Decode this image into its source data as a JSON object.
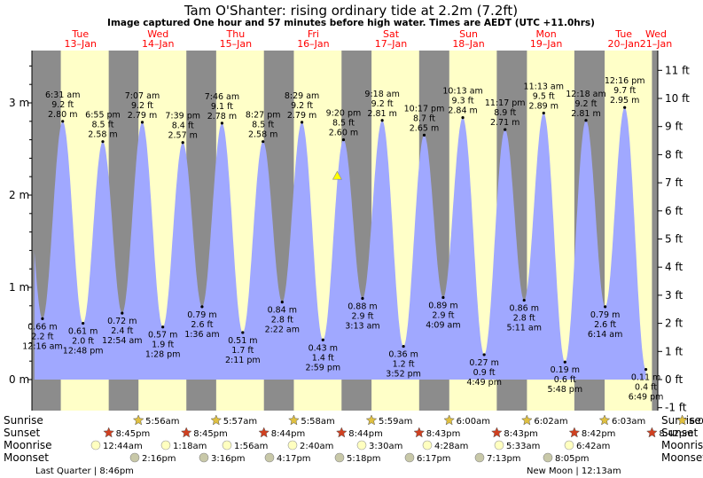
{
  "title": "Tam O'Shanter: rising  ordinary tide at 2.2m (7.2ft)",
  "subtitle": "Image captured One hour and 57 minutes before high water. Times are AEDT (UTC +11.0hrs)",
  "colors": {
    "day": "#ffffc8",
    "night": "#8c8c8c",
    "water": "#a0a8ff",
    "date_text": "#ff0000",
    "marker": "#ffff00"
  },
  "chart_data": {
    "type": "area",
    "series": [],
    "x_unit": "time (AEDT)",
    "y_left_ticks": [
      "0 m",
      "1 m",
      "2 m",
      "3 m"
    ],
    "y_right_ticks": [
      "-1 ft",
      "0 ft",
      "1 ft",
      "2 ft",
      "3 ft",
      "4 ft",
      "5 ft",
      "6 ft",
      "7 ft",
      "8 ft",
      "9 ft",
      "10 ft",
      "11 ft"
    ],
    "ylim_m": [
      -0.2,
      3.6
    ],
    "grid": false,
    "days": [
      {
        "dow": "Tue",
        "date": "13–Jan"
      },
      {
        "dow": "Wed",
        "date": "14–Jan"
      },
      {
        "dow": "Thu",
        "date": "15–Jan"
      },
      {
        "dow": "Fri",
        "date": "16–Jan"
      },
      {
        "dow": "Sat",
        "date": "17–Jan"
      },
      {
        "dow": "Sun",
        "date": "18–Jan"
      },
      {
        "dow": "Mon",
        "date": "19–Jan"
      },
      {
        "dow": "Tue",
        "date": "20–Jan"
      },
      {
        "dow": "Wed",
        "date": "21–Jan"
      }
    ],
    "tides": [
      {
        "type": "low",
        "time": "12:16 am",
        "m": "0.66 m",
        "ft": "2.2 ft",
        "h": 0.66,
        "t": 0.27
      },
      {
        "type": "high",
        "time": "6:31 am",
        "m": "2.80 m",
        "ft": "9.2 ft",
        "h": 2.8,
        "t": 6.52
      },
      {
        "type": "low",
        "time": "12:48 pm",
        "m": "0.61 m",
        "ft": "2.0 ft",
        "h": 0.61,
        "t": 12.8
      },
      {
        "type": "high",
        "time": "6:55 pm",
        "m": "2.58 m",
        "ft": "8.5 ft",
        "h": 2.58,
        "t": 18.92
      },
      {
        "type": "low",
        "time": "12:54 am",
        "m": "0.72 m",
        "ft": "2.4 ft",
        "h": 0.72,
        "t": 24.9
      },
      {
        "type": "high",
        "time": "7:07 am",
        "m": "2.79 m",
        "ft": "9.2 ft",
        "h": 2.79,
        "t": 31.12
      },
      {
        "type": "low",
        "time": "1:28 pm",
        "m": "0.57 m",
        "ft": "1.9 ft",
        "h": 0.57,
        "t": 37.47
      },
      {
        "type": "high",
        "time": "7:39 pm",
        "m": "2.57 m",
        "ft": "8.4 ft",
        "h": 2.57,
        "t": 43.65
      },
      {
        "type": "low",
        "time": "1:36 am",
        "m": "0.79 m",
        "ft": "2.6 ft",
        "h": 0.79,
        "t": 49.6
      },
      {
        "type": "high",
        "time": "7:46 am",
        "m": "2.78 m",
        "ft": "9.1 ft",
        "h": 2.78,
        "t": 55.77
      },
      {
        "type": "low",
        "time": "2:11 pm",
        "m": "0.51 m",
        "ft": "1.7 ft",
        "h": 0.51,
        "t": 62.18
      },
      {
        "type": "high",
        "time": "8:27 pm",
        "m": "2.58 m",
        "ft": "8.5 ft",
        "h": 2.58,
        "t": 68.45
      },
      {
        "type": "low",
        "time": "2:22 am",
        "m": "0.84 m",
        "ft": "2.8 ft",
        "h": 0.84,
        "t": 74.37
      },
      {
        "type": "high",
        "time": "8:29 am",
        "m": "2.79 m",
        "ft": "9.2 ft",
        "h": 2.79,
        "t": 80.48
      },
      {
        "type": "low",
        "time": "2:59 pm",
        "m": "0.43 m",
        "ft": "1.4 ft",
        "h": 0.43,
        "t": 86.98
      },
      {
        "type": "high",
        "time": "9:20 pm",
        "m": "2.60 m",
        "ft": "8.5 ft",
        "h": 2.6,
        "t": 93.33
      },
      {
        "type": "low",
        "time": "3:13 am",
        "m": "0.88 m",
        "ft": "2.9 ft",
        "h": 0.88,
        "t": 99.22
      },
      {
        "type": "high",
        "time": "9:18 am",
        "m": "2.81 m",
        "ft": "9.2 ft",
        "h": 2.81,
        "t": 105.3
      },
      {
        "type": "low",
        "time": "3:52 pm",
        "m": "0.36 m",
        "ft": "1.2 ft",
        "h": 0.36,
        "t": 111.87
      },
      {
        "type": "high",
        "time": "10:17 pm",
        "m": "2.65 m",
        "ft": "8.7 ft",
        "h": 2.65,
        "t": 118.28
      },
      {
        "type": "low",
        "time": "4:09 am",
        "m": "0.89 m",
        "ft": "2.9 ft",
        "h": 0.89,
        "t": 124.15
      },
      {
        "type": "high",
        "time": "10:13 am",
        "m": "2.84 m",
        "ft": "9.3 ft",
        "h": 2.84,
        "t": 130.22
      },
      {
        "type": "low",
        "time": "4:49 pm",
        "m": "0.27 m",
        "ft": "0.9 ft",
        "h": 0.27,
        "t": 136.82
      },
      {
        "type": "high",
        "time": "11:17 pm",
        "m": "2.71 m",
        "ft": "8.9 ft",
        "h": 2.71,
        "t": 143.28
      },
      {
        "type": "low",
        "time": "5:11 am",
        "m": "0.86 m",
        "ft": "2.8 ft",
        "h": 0.86,
        "t": 149.18
      },
      {
        "type": "high",
        "time": "11:13 am",
        "m": "2.89 m",
        "ft": "9.5 ft",
        "h": 2.89,
        "t": 155.22
      },
      {
        "type": "low",
        "time": "5:48 pm",
        "m": "0.19 m",
        "ft": "0.6 ft",
        "h": 0.19,
        "t": 161.8
      },
      {
        "type": "high",
        "time": "12:18 am",
        "m": "2.81 m",
        "ft": "9.2 ft",
        "h": 2.81,
        "t": 168.3
      },
      {
        "type": "low",
        "time": "6:14 am",
        "m": "0.79 m",
        "ft": "2.6 ft",
        "h": 0.79,
        "t": 174.23
      },
      {
        "type": "high",
        "time": "12:16 pm",
        "m": "2.95 m",
        "ft": "9.7 ft",
        "h": 2.95,
        "t": 180.27
      },
      {
        "type": "low",
        "time": "6:49 pm",
        "m": "0.11 m",
        "ft": "0.4 ft",
        "h": 0.11,
        "t": 186.82
      }
    ],
    "current": {
      "h": 2.2,
      "t": 91.4
    },
    "sunrise_hours": [
      5.93,
      5.95,
      5.97,
      5.98,
      6.0,
      6.03,
      6.05,
      6.07
    ],
    "sunset_hours": [
      20.75,
      20.75,
      20.73,
      20.73,
      20.72,
      20.72,
      20.7,
      20.7
    ],
    "window": {
      "start_hour": -3.0,
      "end_hour": 190.5
    }
  },
  "almanac": {
    "row_labels": [
      "Sunrise",
      "Sunset",
      "Moonrise",
      "Moonset"
    ],
    "sunrise": [
      "5:56am",
      "5:57am",
      "5:58am",
      "5:59am",
      "6:00am",
      "6:02am",
      "6:03am",
      "6:04am"
    ],
    "sunset": [
      "8:45pm",
      "8:45pm",
      "8:44pm",
      "8:44pm",
      "8:43pm",
      "8:43pm",
      "8:42pm",
      "8:42pm"
    ],
    "moonrise": [
      "12:44am",
      "1:18am",
      "1:56am",
      "2:40am",
      "3:30am",
      "4:28am",
      "5:33am",
      "6:42am"
    ],
    "moonset": [
      "2:16pm",
      "3:16pm",
      "4:17pm",
      "5:18pm",
      "6:17pm",
      "7:13pm",
      "8:05pm"
    ],
    "moon_phases": [
      "Last Quarter | 8:46pm",
      "New Moon | 12:13am"
    ]
  }
}
